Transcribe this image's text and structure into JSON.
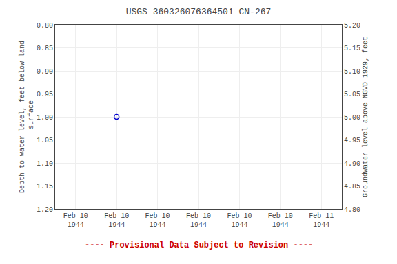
{
  "chart_data": {
    "type": "scatter",
    "title": "USGS 360326076364501 CN-267",
    "categories": [
      "Feb 10\n1944",
      "Feb 10\n1944",
      "Feb 10\n1944",
      "Feb 10\n1944",
      "Feb 10\n1944",
      "Feb 10\n1944",
      "Feb 11\n1944"
    ],
    "values": [
      null,
      1.0,
      null,
      null,
      null,
      null,
      null
    ],
    "color": "#0000cc",
    "marker": "circle-open",
    "ylabel": "Depth to water level, feet below land\n surface",
    "y2label": "Groundwater level above NGVD 1929, feet",
    "ylim": [
      1.2,
      0.8
    ],
    "yticks": [
      {
        "value": 0.8,
        "label": "0.80"
      },
      {
        "value": 0.85,
        "label": "0.85"
      },
      {
        "value": 0.9,
        "label": "0.90"
      },
      {
        "value": 0.95,
        "label": "0.95"
      },
      {
        "value": 1.0,
        "label": "1.00"
      },
      {
        "value": 1.05,
        "label": "1.05"
      },
      {
        "value": 1.1,
        "label": "1.10"
      },
      {
        "value": 1.15,
        "label": "1.15"
      },
      {
        "value": 1.2,
        "label": "1.20"
      }
    ],
    "y2lim": [
      4.8,
      5.2
    ],
    "y2ticks": [
      {
        "value": 5.2,
        "label": "5.20"
      },
      {
        "value": 5.15,
        "label": "5.15"
      },
      {
        "value": 5.1,
        "label": "5.10"
      },
      {
        "value": 5.05,
        "label": "5.05"
      },
      {
        "value": 5.0,
        "label": "5.00"
      },
      {
        "value": 4.95,
        "label": "4.95"
      },
      {
        "value": 4.9,
        "label": "4.90"
      },
      {
        "value": 4.85,
        "label": "4.85"
      },
      {
        "value": 4.8,
        "label": "4.80"
      }
    ],
    "grid": true,
    "annotations": [
      {
        "text": "---- Provisional Data Subject to Revision ----",
        "color": "#cc0000"
      }
    ]
  }
}
